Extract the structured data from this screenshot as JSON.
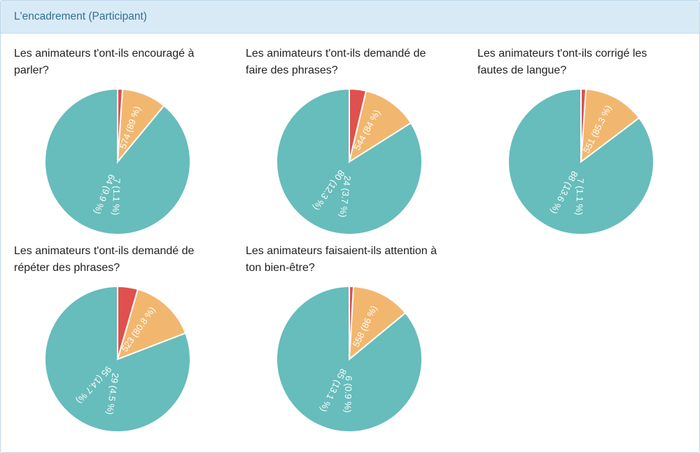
{
  "panel": {
    "title": "L'encadrement (Participant)"
  },
  "colors": {
    "high": "#67bcbc",
    "mid": "#f2b76e",
    "low": "#e0504f",
    "header_bg": "#d9eaf7",
    "header_text": "#31708f"
  },
  "chart_data": [
    {
      "type": "pie",
      "title": "Les animateurs t'ont-ils encouragé à parler?",
      "slices": [
        {
          "value": 574,
          "label": "574 (89 %)"
        },
        {
          "value": 64,
          "label": "64 (9.9 %)"
        },
        {
          "value": 7,
          "label": "7 (1.1 %)"
        }
      ]
    },
    {
      "type": "pie",
      "title": "Les animateurs t'ont-ils demandé de faire des phrases?",
      "slices": [
        {
          "value": 544,
          "label": "544 (84 %)"
        },
        {
          "value": 80,
          "label": "80 (12.3 %)"
        },
        {
          "value": 24,
          "label": "24 (3.7 %)"
        }
      ]
    },
    {
      "type": "pie",
      "title": "Les animateurs t'ont-ils corrigé les fautes de langue?",
      "slices": [
        {
          "value": 551,
          "label": "551 (85.3 %)"
        },
        {
          "value": 88,
          "label": "88 (13.6 %)"
        },
        {
          "value": 7,
          "label": "7 (1.1 %)"
        }
      ]
    },
    {
      "type": "pie",
      "title": "Les animateurs t'ont-ils demandé de répéter des phrases?",
      "slices": [
        {
          "value": 523,
          "label": "523 (80.8 %)"
        },
        {
          "value": 95,
          "label": "95 (14.7 %)"
        },
        {
          "value": 29,
          "label": "29 (4.5 %)"
        }
      ]
    },
    {
      "type": "pie",
      "title": "Les animateurs faisaient-ils attention à ton bien-être?",
      "slices": [
        {
          "value": 558,
          "label": "558 (86 %)"
        },
        {
          "value": 85,
          "label": "85 (13.1 %)"
        },
        {
          "value": 6,
          "label": "6 (0.9 %)"
        }
      ]
    }
  ]
}
